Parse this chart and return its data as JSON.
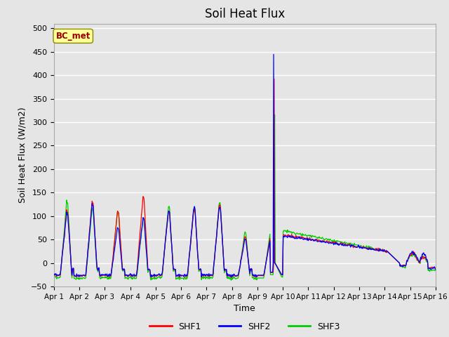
{
  "title": "Soil Heat Flux",
  "ylabel": "Soil Heat Flux (W/m2)",
  "xlabel": "Time",
  "ylim": [
    -50,
    510
  ],
  "annotation": "BC_met",
  "line_colors": {
    "SHF1": "#ff0000",
    "SHF2": "#0000ff",
    "SHF3": "#00cc00"
  },
  "legend_labels": [
    "SHF1",
    "SHF2",
    "SHF3"
  ],
  "bg_color": "#e5e5e5",
  "grid_color": "#ffffff",
  "tick_labels": [
    "Apr 1",
    "Apr 2",
    "Apr 3",
    "Apr 4",
    "Apr 5",
    "Apr 6",
    "Apr 7",
    "Apr 8",
    "Apr 9",
    "Apr 10",
    "Apr 11",
    "Apr 12",
    "Apr 13",
    "Apr 14",
    "Apr 15",
    "Apr 16"
  ],
  "title_fontsize": 12,
  "label_fontsize": 9,
  "day_peaks_shf1": [
    110,
    130,
    110,
    140,
    110,
    115,
    125,
    55
  ],
  "day_peaks_shf2": [
    105,
    125,
    75,
    95,
    110,
    120,
    120,
    50
  ],
  "day_peaks_shf3": [
    130,
    115,
    110,
    95,
    120,
    120,
    130,
    65
  ]
}
